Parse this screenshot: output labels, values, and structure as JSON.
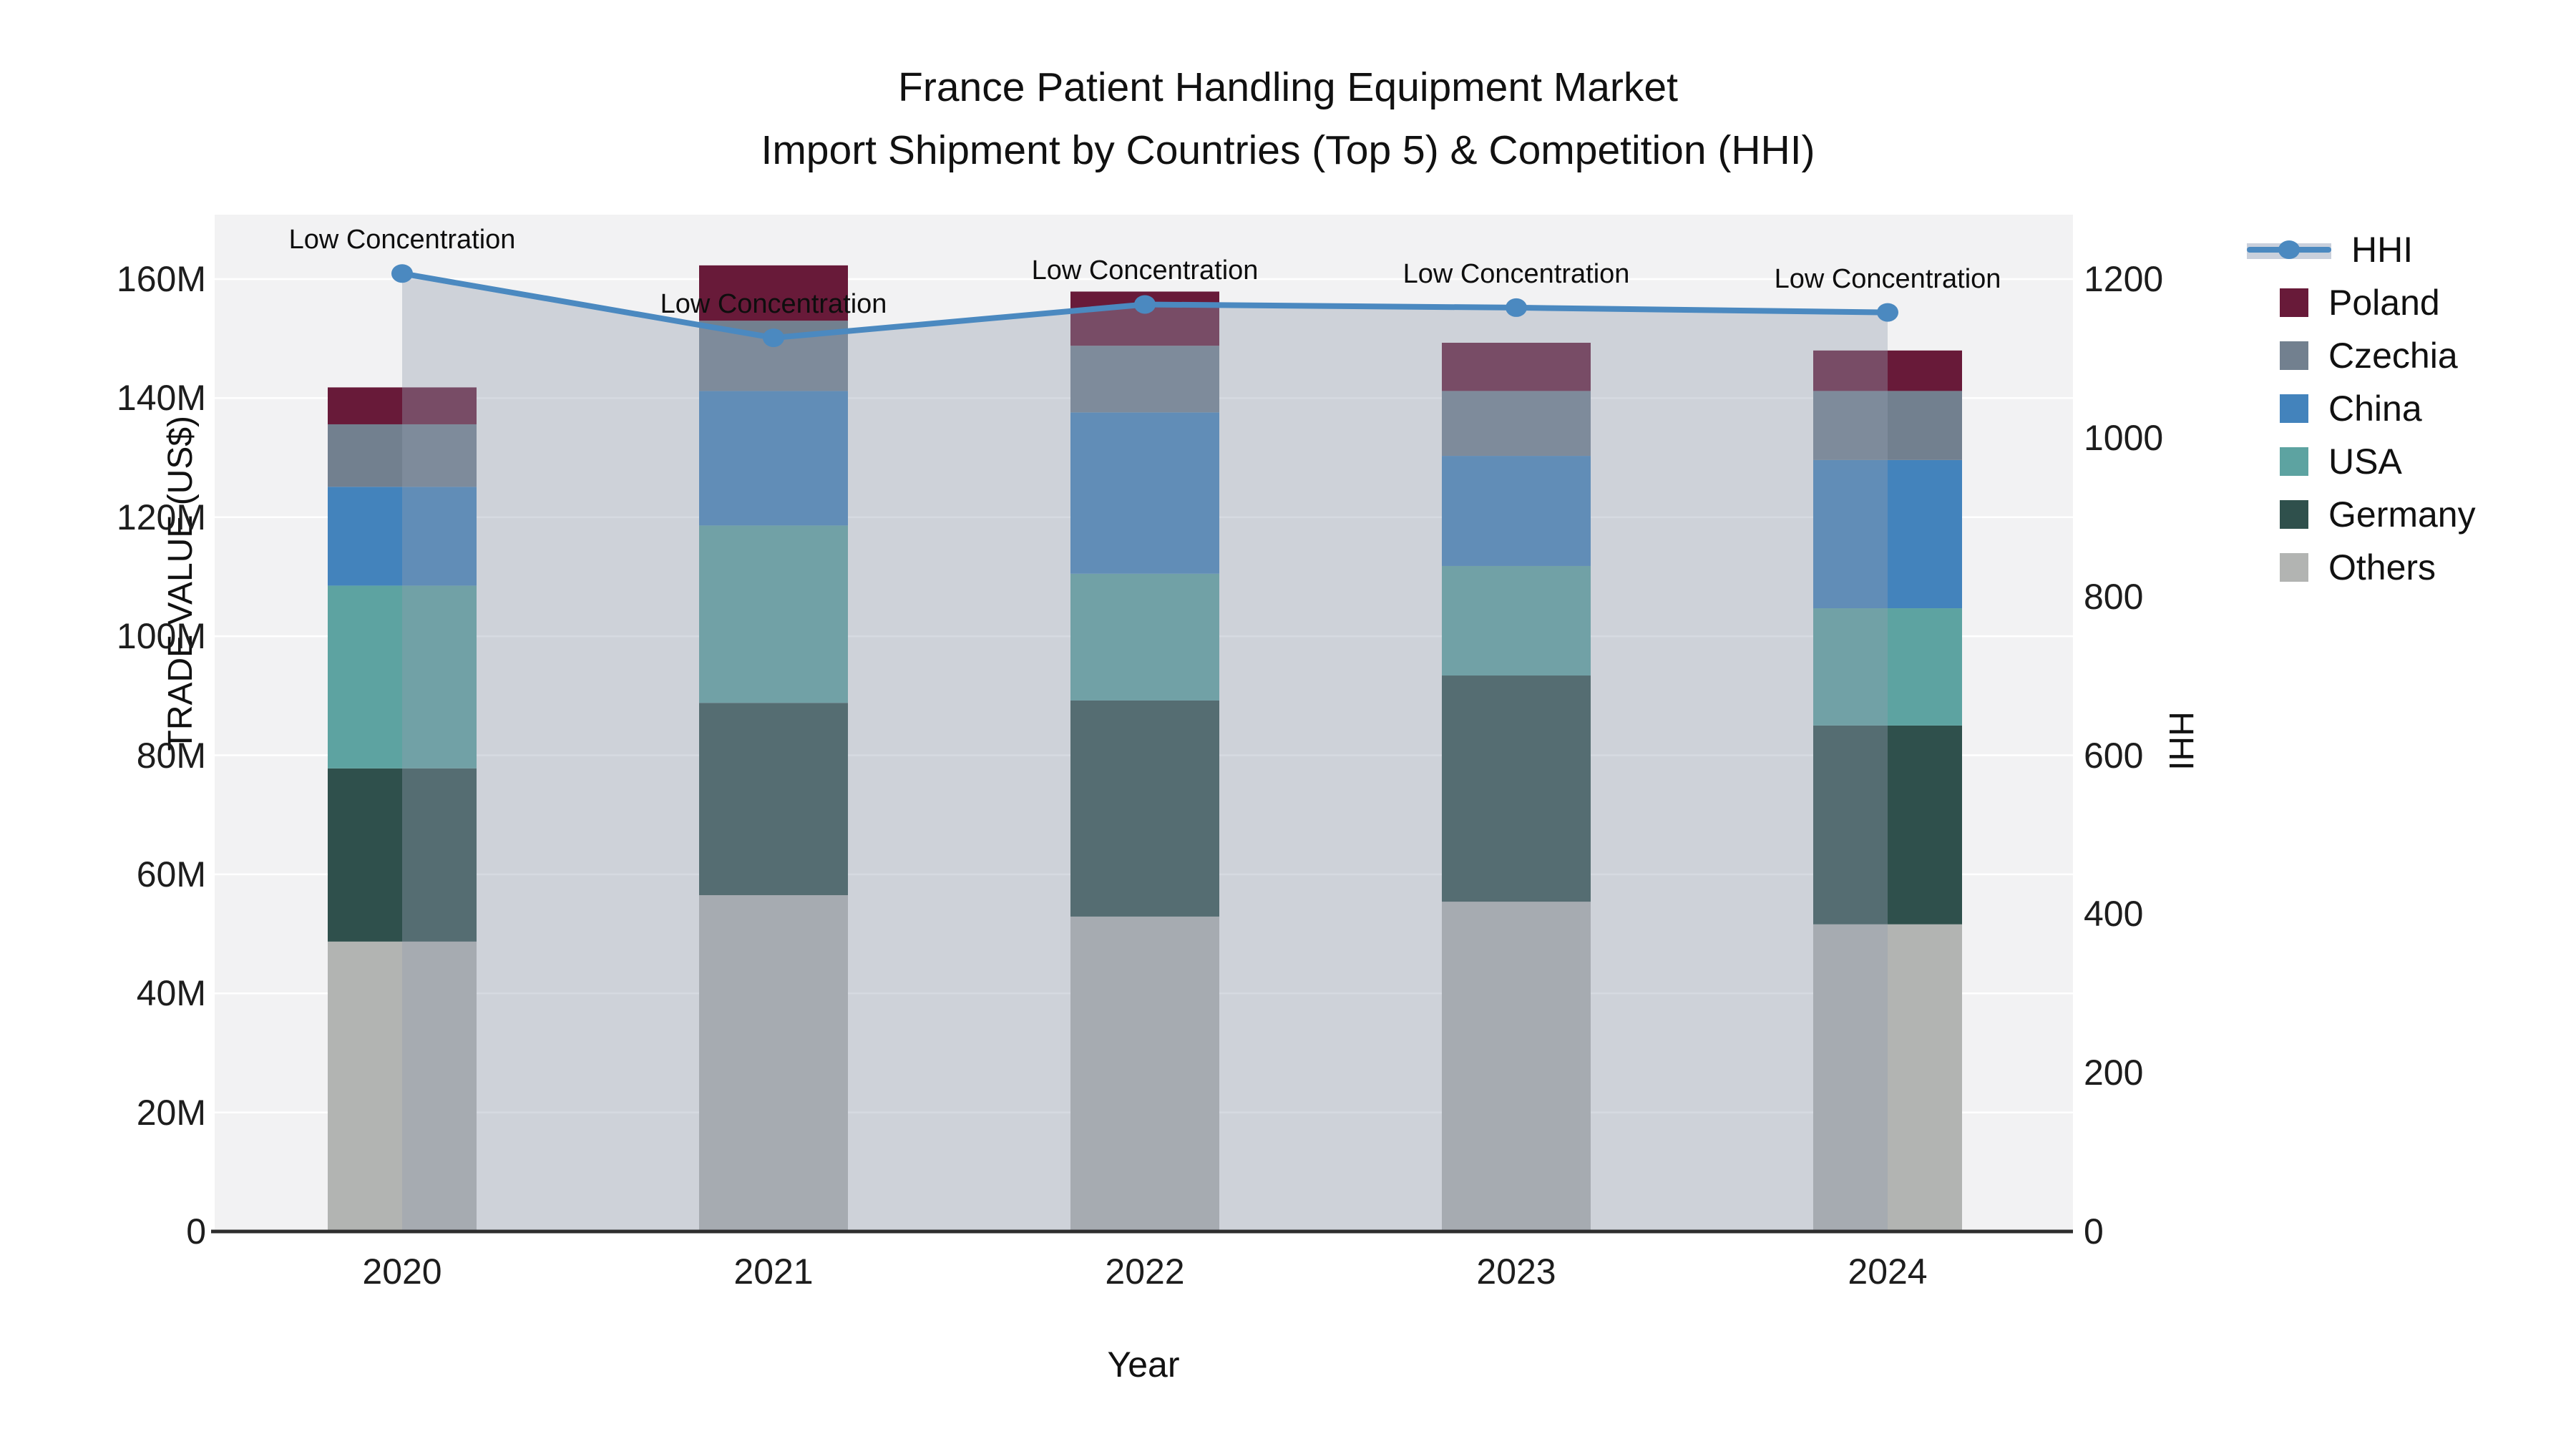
{
  "title": {
    "line1": "France Patient Handling Equipment Market",
    "line2": "Import Shipment by Countries (Top 5) & Competition (HHI)"
  },
  "axes": {
    "x": {
      "title": "Year",
      "ticks": [
        "2020",
        "2021",
        "2022",
        "2023",
        "2024"
      ]
    },
    "y_left": {
      "title": "TRADE VALUE (US$)",
      "ticks": [
        "0",
        "20M",
        "40M",
        "60M",
        "80M",
        "100M",
        "120M",
        "140M",
        "160M"
      ]
    },
    "y_right": {
      "title": "HHI",
      "ticks": [
        "0",
        "200",
        "400",
        "600",
        "800",
        "1000",
        "1200"
      ]
    }
  },
  "annotation_text": "Low Concentration",
  "legend": {
    "items": [
      {
        "label": "HHI",
        "type": "line",
        "color": "#4b89c0",
        "band": "#c9d0dc"
      },
      {
        "label": "Poland",
        "type": "bar",
        "color": "#681a39"
      },
      {
        "label": "Czechia",
        "type": "bar",
        "color": "#72808f"
      },
      {
        "label": "China",
        "type": "bar",
        "color": "#4383bc"
      },
      {
        "label": "USA",
        "type": "bar",
        "color": "#5da3a1"
      },
      {
        "label": "Germany",
        "type": "bar",
        "color": "#2f504c"
      },
      {
        "label": "Others",
        "type": "bar",
        "color": "#b2b4b2"
      }
    ]
  },
  "colors": {
    "plot_background": "#f2f2f3",
    "gridline": "#ffffff",
    "x_axis_line": "#2e2e2e",
    "hhi_line": "#4b89c0",
    "hhi_area_fill": "rgba(148,158,176,0.38)"
  },
  "chart_data": {
    "type": "bar",
    "subtype": "stacked-bars-with-secondary-axis-line",
    "title": "France Patient Handling Equipment Market — Import Shipment by Countries (Top 5) & Competition (HHI)",
    "xlabel": "Year",
    "ylabel_left": "TRADE VALUE (US$)",
    "ylabel_right": "HHI",
    "categories": [
      2020,
      2021,
      2022,
      2023,
      2024
    ],
    "bar_value_unit": "million US$",
    "series": [
      {
        "name": "Others",
        "color": "#b2b4b2",
        "values": [
          48.7,
          56.5,
          52.9,
          55.4,
          51.6
        ]
      },
      {
        "name": "Germany",
        "color": "#2f504c",
        "values": [
          29.1,
          32.3,
          36.3,
          38.0,
          33.4
        ]
      },
      {
        "name": "USA",
        "color": "#5da3a1",
        "values": [
          30.7,
          29.8,
          21.3,
          18.4,
          19.7
        ]
      },
      {
        "name": "China",
        "color": "#4383bc",
        "values": [
          16.6,
          22.6,
          27.1,
          18.5,
          24.9
        ]
      },
      {
        "name": "Czechia",
        "color": "#72808f",
        "values": [
          10.5,
          11.8,
          11.2,
          10.9,
          11.6
        ]
      },
      {
        "name": "Poland",
        "color": "#681a39",
        "values": [
          6.2,
          9.3,
          9.1,
          8.1,
          6.8
        ]
      }
    ],
    "bar_totals": [
      141.8,
      162.3,
      157.9,
      149.3,
      148.0
    ],
    "line_series": {
      "name": "HHI",
      "axis": "right",
      "color": "#4b89c0",
      "area_fill": "rgba(148,158,176,0.38)",
      "values": [
        1207,
        1126,
        1168,
        1164,
        1158
      ],
      "point_annotations": [
        "Low Concentration",
        "Low Concentration",
        "Low Concentration",
        "Low Concentration",
        "Low Concentration"
      ]
    },
    "ylim_left_millions": [
      0,
      160
    ],
    "ylim_right": [
      0,
      1200
    ],
    "grid": "horizontal-only",
    "legend_position": "right-outside"
  }
}
